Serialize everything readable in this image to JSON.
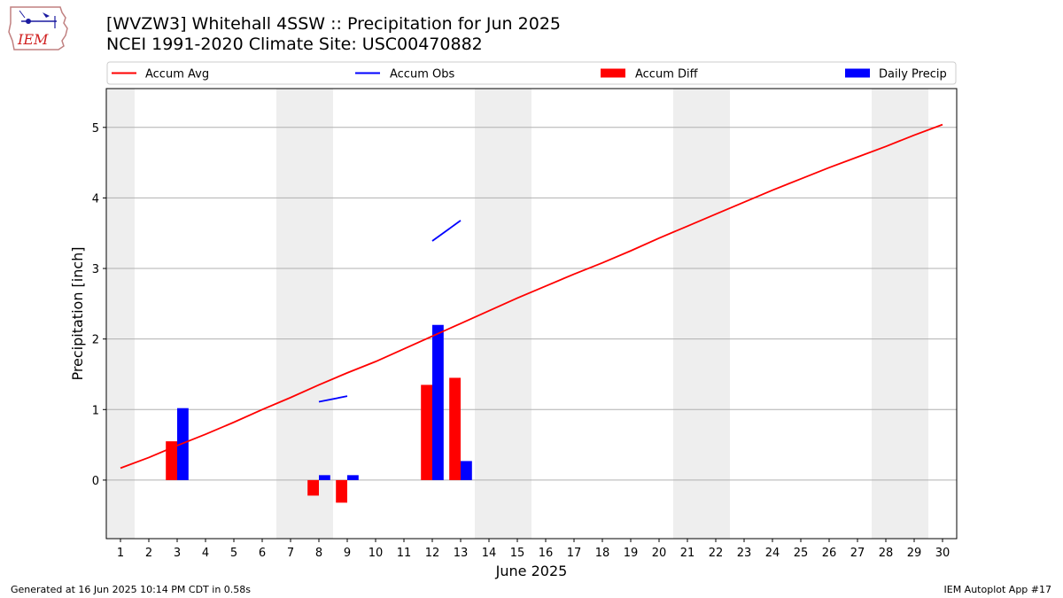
{
  "header": {
    "title_line1": "[WVZW3] Whitehall 4SSW :: Precipitation for Jun 2025",
    "title_line2": "NCEI 1991-2020 Climate Site: USC00470882"
  },
  "logo": {
    "text": "IEM"
  },
  "footer": {
    "left": "Generated at 16 Jun 2025 10:14 PM CDT in 0.58s",
    "right": "IEM Autoplot App #17"
  },
  "colors": {
    "avg": "#ff0000",
    "obs": "#0000ff",
    "diff": "#ff0000",
    "daily": "#0000ff",
    "weekend_shade": "#eeeeee",
    "grid": "#b0b0b0"
  },
  "chart_data": {
    "type": "bar",
    "title": "[WVZW3] Whitehall 4SSW :: Precipitation for Jun 2025",
    "subtitle": "NCEI 1991-2020 Climate Site: USC00470882",
    "xlabel": "June 2025",
    "ylabel": "Precipitation [inch]",
    "xlim": [
      0.5,
      30.5
    ],
    "ylim": [
      -0.83,
      5.55
    ],
    "yticks": [
      0,
      1,
      2,
      3,
      4,
      5
    ],
    "categories": [
      "1",
      "2",
      "3",
      "4",
      "5",
      "6",
      "7",
      "8",
      "9",
      "10",
      "11",
      "12",
      "13",
      "14",
      "15",
      "16",
      "17",
      "18",
      "19",
      "20",
      "21",
      "22",
      "23",
      "24",
      "25",
      "26",
      "27",
      "28",
      "29",
      "30"
    ],
    "grid": "y",
    "legend": {
      "placement": "top",
      "entries": [
        {
          "label": "Accum Avg",
          "kind": "line",
          "color": "#ff0000"
        },
        {
          "label": "Accum Obs",
          "kind": "line",
          "color": "#0000ff"
        },
        {
          "label": "Accum Diff",
          "kind": "bar",
          "color": "#ff0000"
        },
        {
          "label": "Daily Precip",
          "kind": "bar",
          "color": "#0000ff"
        }
      ]
    },
    "shaded_day_ranges": [
      [
        0.5,
        1.5
      ],
      [
        6.5,
        8.5
      ],
      [
        13.5,
        15.5
      ],
      [
        20.5,
        22.5
      ],
      [
        27.5,
        29.5
      ]
    ],
    "series": [
      {
        "name": "Accum Avg",
        "kind": "line",
        "x": [
          1,
          2,
          3,
          4,
          5,
          6,
          7,
          8,
          9,
          10,
          11,
          12,
          13,
          14,
          15,
          16,
          17,
          18,
          19,
          20,
          21,
          22,
          23,
          24,
          25,
          26,
          27,
          28,
          29,
          30
        ],
        "values": [
          0.17,
          0.32,
          0.49,
          0.65,
          0.82,
          1.0,
          1.17,
          1.35,
          1.52,
          1.68,
          1.86,
          2.04,
          2.22,
          2.4,
          2.58,
          2.75,
          2.92,
          3.08,
          3.25,
          3.43,
          3.6,
          3.77,
          3.94,
          4.11,
          4.27,
          4.43,
          4.58,
          4.73,
          4.89,
          5.04
        ]
      },
      {
        "name": "Accum Obs",
        "kind": "line",
        "segments": [
          {
            "x": [
              8,
              9
            ],
            "values": [
              1.11,
              1.19
            ]
          },
          {
            "x": [
              12,
              13
            ],
            "values": [
              3.39,
              3.68
            ]
          }
        ]
      },
      {
        "name": "Accum Diff",
        "kind": "bar",
        "x": [
          3,
          8,
          9,
          12,
          13
        ],
        "values": [
          0.55,
          -0.22,
          -0.32,
          1.35,
          1.45
        ]
      },
      {
        "name": "Daily Precip",
        "kind": "bar",
        "x": [
          3,
          8,
          9,
          12,
          13
        ],
        "values": [
          1.02,
          0.07,
          0.07,
          2.2,
          0.27
        ]
      }
    ]
  }
}
